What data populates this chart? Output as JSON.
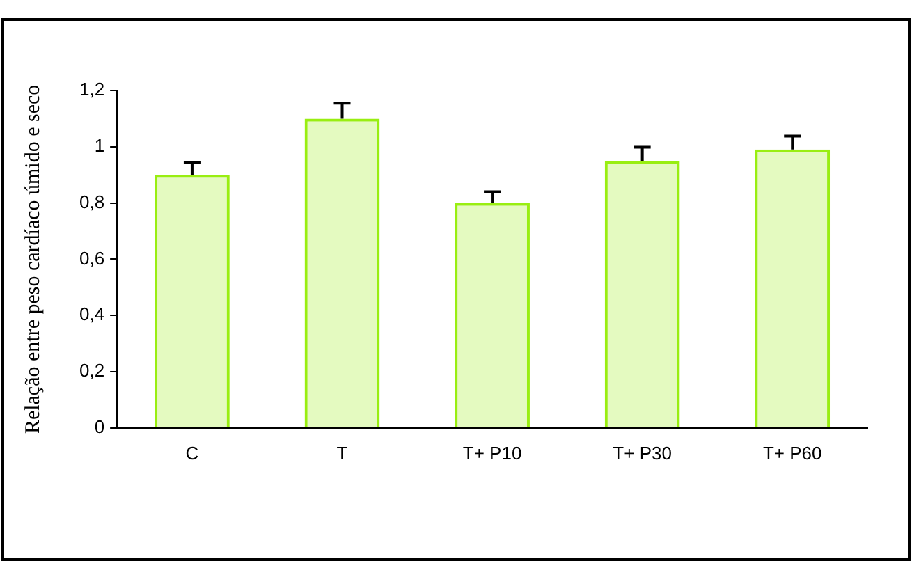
{
  "chart_data": {
    "type": "bar",
    "ylabel": "Relação entre peso cardíaco úmido e seco",
    "categories": [
      "C",
      "T",
      "T+ P10",
      "T+ P30",
      "T+ P60"
    ],
    "values": [
      0.9,
      1.1,
      0.8,
      0.95,
      0.99
    ],
    "errors": [
      [
        0.9,
        0.945
      ],
      [
        1.1,
        1.155
      ],
      [
        0.8,
        0.84
      ],
      [
        0.95,
        0.998
      ],
      [
        0.99,
        1.038
      ]
    ],
    "color": "#99ee11",
    "ylim": [
      0,
      1.2
    ],
    "yticks": [
      0,
      {
        "value": 0.2,
        "label": "0,2"
      },
      {
        "value": 0.4,
        "label": "0,4"
      },
      {
        "value": 0.6,
        "label": "0,6"
      },
      {
        "value": 0.8,
        "label": "0,8"
      },
      1,
      {
        "value": 1.2,
        "label": "1,2"
      }
    ],
    "grid": false,
    "legend": false
  }
}
